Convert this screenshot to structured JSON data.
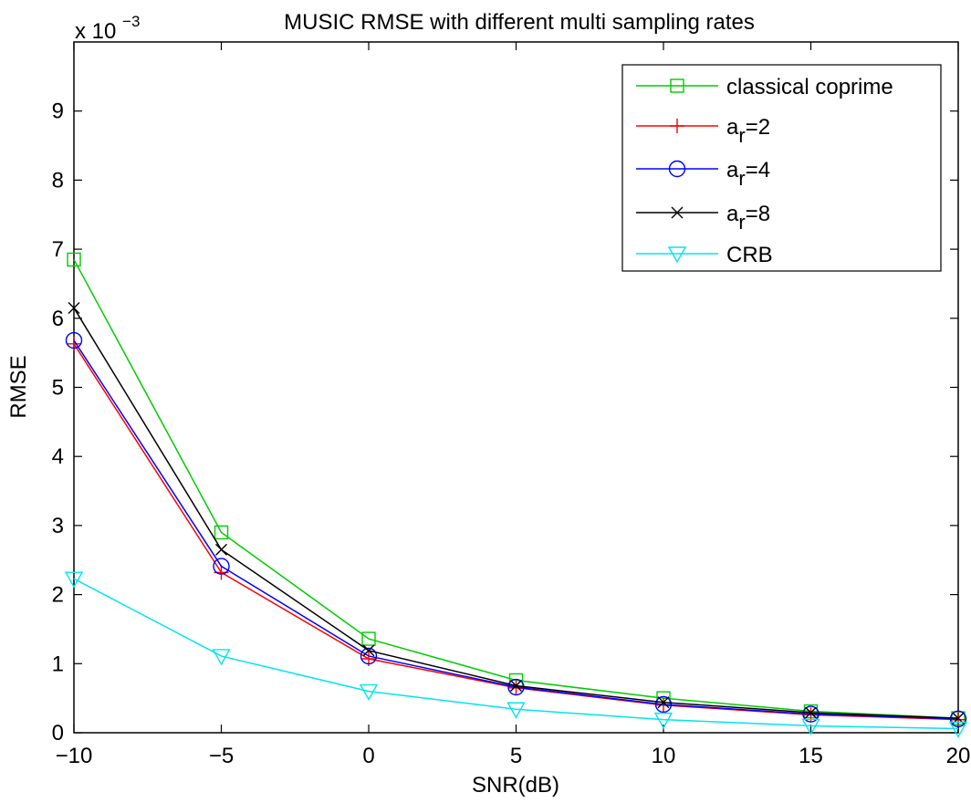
{
  "chart_data": {
    "type": "line",
    "title": "MUSIC RMSE with different multi sampling rates",
    "xlabel": "SNR(dB)",
    "ylabel": "RMSE",
    "y_exponent_label": {
      "base": "x 10",
      "exp": "−3"
    },
    "x": [
      -10,
      -5,
      0,
      5,
      10,
      15,
      20
    ],
    "xlim": [
      -10,
      20
    ],
    "ylim": [
      0,
      10
    ],
    "x_ticks": [
      -10,
      -5,
      0,
      5,
      10,
      15,
      20
    ],
    "x_tick_labels": [
      "−10",
      "−5",
      "0",
      "5",
      "10",
      "15",
      "20"
    ],
    "y_ticks": [
      0,
      1,
      2,
      3,
      4,
      5,
      6,
      7,
      8,
      9
    ],
    "y_tick_labels": [
      "0",
      "1",
      "2",
      "3",
      "4",
      "5",
      "6",
      "7",
      "8",
      "9"
    ],
    "grid": false,
    "legend_position": "top-right",
    "series": [
      {
        "legend_main": "classical coprime",
        "legend_sub": "",
        "legend_tail": "",
        "color": "#00cc00",
        "marker": "square",
        "values": [
          6.85,
          2.9,
          1.36,
          0.76,
          0.5,
          0.31,
          0.21
        ]
      },
      {
        "legend_main": "a",
        "legend_sub": "r",
        "legend_tail": "=2",
        "color": "#ff0000",
        "marker": "plus",
        "values": [
          5.63,
          2.32,
          1.07,
          0.65,
          0.4,
          0.26,
          0.19
        ]
      },
      {
        "legend_main": "a",
        "legend_sub": "r",
        "legend_tail": "=4",
        "color": "#0000ff",
        "marker": "circle",
        "values": [
          5.68,
          2.41,
          1.11,
          0.66,
          0.41,
          0.27,
          0.2
        ]
      },
      {
        "legend_main": "a",
        "legend_sub": "r",
        "legend_tail": "=8",
        "color": "#000000",
        "marker": "x",
        "values": [
          6.15,
          2.65,
          1.19,
          0.68,
          0.44,
          0.29,
          0.21
        ]
      },
      {
        "legend_main": "CRB",
        "legend_sub": "",
        "legend_tail": "",
        "color": "#00e5ee",
        "marker": "triangle-down",
        "values": [
          2.23,
          1.11,
          0.6,
          0.34,
          0.19,
          0.1,
          0.06
        ]
      }
    ]
  }
}
